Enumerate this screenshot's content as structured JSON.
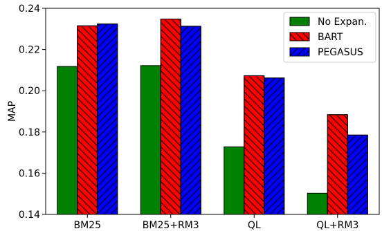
{
  "chart_data": {
    "type": "bar",
    "title": "",
    "xlabel": "",
    "ylabel": "MAP",
    "ylim": [
      0.14,
      0.24
    ],
    "yticks": [
      "0.14",
      "0.16",
      "0.18",
      "0.20",
      "0.22",
      "0.24"
    ],
    "grid": false,
    "legend_position": "top-right",
    "categories": [
      "BM25",
      "BM25+RM3",
      "QL",
      "QL+RM3"
    ],
    "series": [
      {
        "name": "No Expan.",
        "color": "#008000",
        "pattern": "none",
        "values": [
          0.2118,
          0.2122,
          0.1728,
          0.1503
        ]
      },
      {
        "name": "BART",
        "color": "#ff0000",
        "pattern": "backslash",
        "values": [
          0.2315,
          0.2348,
          0.2073,
          0.1884
        ]
      },
      {
        "name": "PEGASUS",
        "color": "#0000ff",
        "pattern": "slash",
        "values": [
          0.2324,
          0.2313,
          0.2062,
          0.1785
        ]
      }
    ]
  }
}
